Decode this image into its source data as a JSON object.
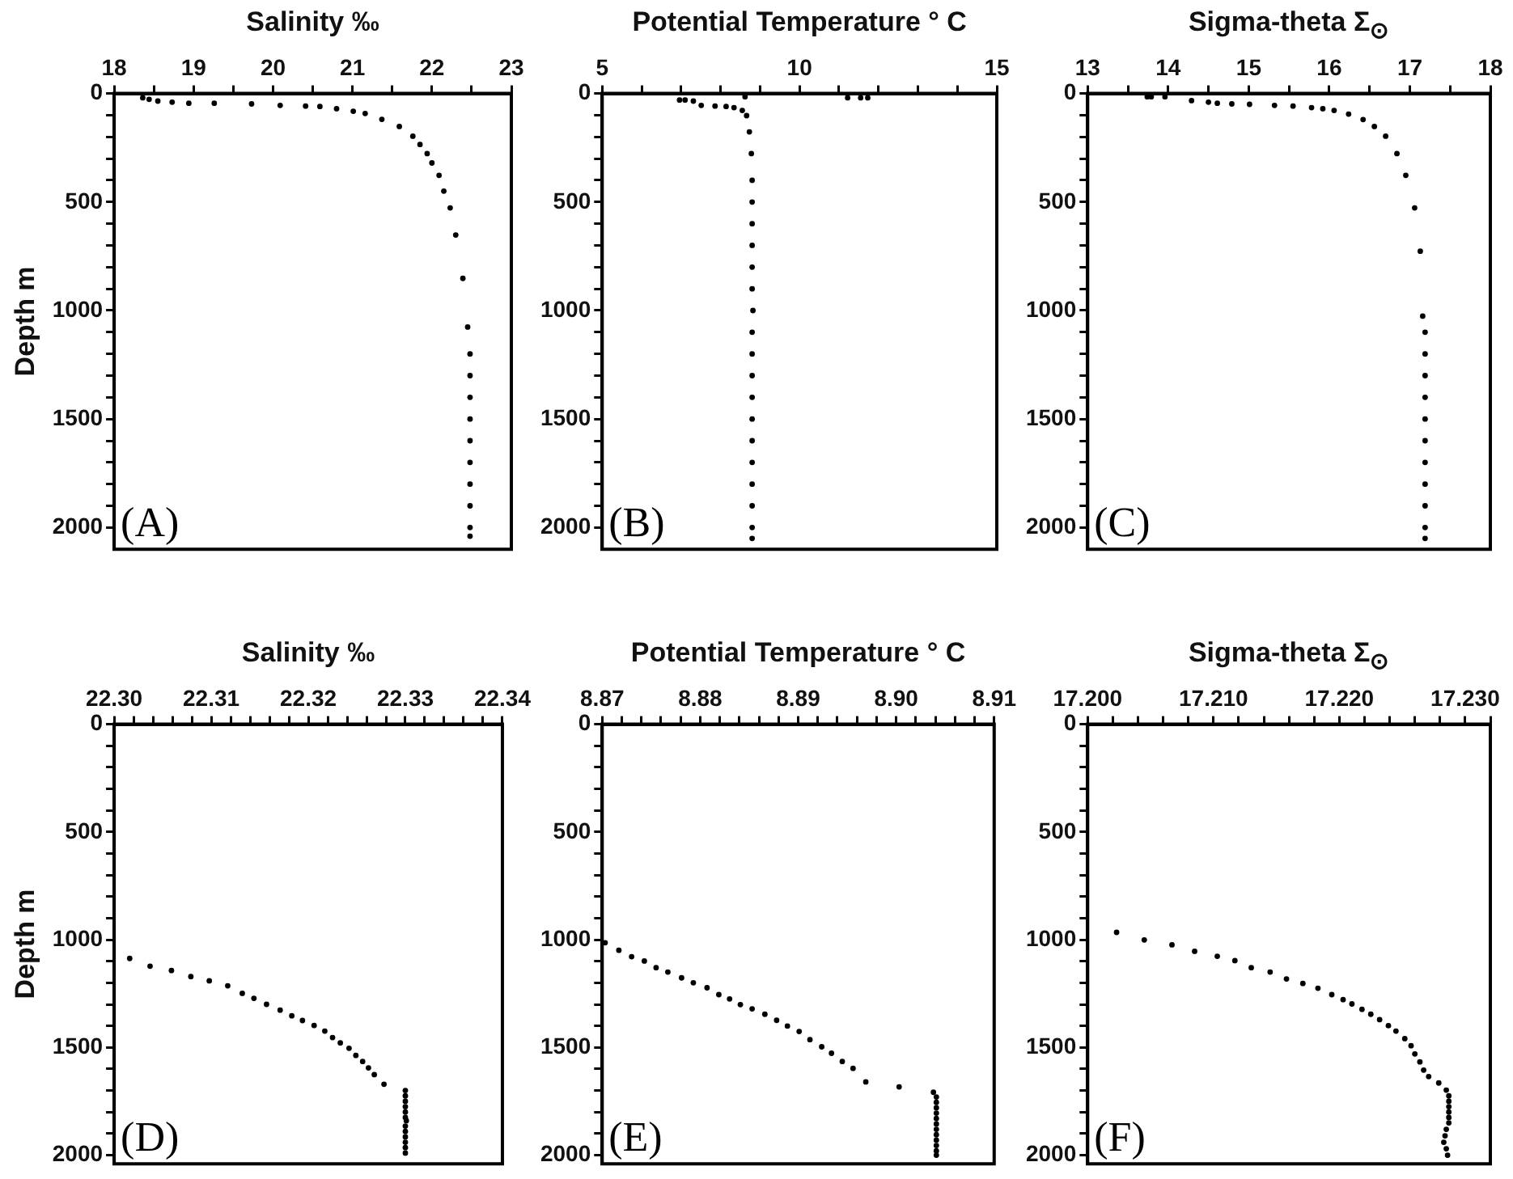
{
  "chart_data": [
    {
      "type": "scatter",
      "xlabel": "Salinity ‰",
      "ylabel": "Depth m",
      "annotations": [
        "(A)"
      ],
      "legend": false,
      "grid": false,
      "marker": "circle",
      "series": [
        {
          "color": "#000000",
          "x": [
            18.36,
            18.44,
            18.55,
            18.73,
            18.94,
            19.26,
            19.73,
            20.09,
            20.41,
            20.59,
            20.8,
            21.01,
            21.16,
            21.37,
            21.59,
            21.76,
            21.85,
            21.94,
            22.0,
            22.09,
            22.15,
            22.23,
            22.3,
            22.39,
            22.45,
            22.48,
            22.48,
            22.48,
            22.48,
            22.48,
            22.48,
            22.48,
            22.48,
            22.48,
            22.48
          ],
          "values": [
            20,
            27,
            35,
            40,
            45,
            45,
            48,
            55,
            58,
            60,
            70,
            82,
            92,
            119,
            152,
            197,
            235,
            277,
            320,
            377,
            450,
            527,
            652,
            852,
            1076,
            1200,
            1300,
            1400,
            1500,
            1600,
            1700,
            1800,
            1900,
            2000,
            2040
          ]
        }
      ],
      "xlim": [
        18,
        23
      ],
      "xticks": [
        18,
        {
          "value": 18.5,
          "label": null
        },
        19,
        {
          "value": 19.5,
          "label": null
        },
        20,
        {
          "value": 20.5,
          "label": null
        },
        21,
        {
          "value": 21.5,
          "label": null
        },
        22,
        {
          "value": 22.5,
          "label": null
        },
        23
      ],
      "ylim": [
        2100,
        0
      ],
      "yticks": [
        0,
        {
          "value": 100,
          "label": null
        },
        {
          "value": 200,
          "label": null
        },
        {
          "value": 300,
          "label": null
        },
        {
          "value": 400,
          "label": null
        },
        500,
        {
          "value": 600,
          "label": null
        },
        {
          "value": 700,
          "label": null
        },
        {
          "value": 800,
          "label": null
        },
        {
          "value": 900,
          "label": null
        },
        1000,
        {
          "value": 1100,
          "label": null
        },
        {
          "value": 1200,
          "label": null
        },
        {
          "value": 1300,
          "label": null
        },
        {
          "value": 1400,
          "label": null
        },
        1500,
        {
          "value": 1600,
          "label": null
        },
        {
          "value": 1700,
          "label": null
        },
        {
          "value": 1800,
          "label": null
        },
        {
          "value": 1900,
          "label": null
        },
        2000
      ]
    },
    {
      "type": "scatter",
      "xlabel": "Potential Temperature ° C",
      "annotations": [
        "(B)"
      ],
      "legend": false,
      "grid": false,
      "marker": "circle",
      "series": [
        {
          "color": "#000000",
          "x": [
            8.62,
            11.22,
            11.55,
            11.73,
            6.96,
            7.1,
            7.31,
            7.51,
            7.86,
            8.14,
            8.34,
            8.55,
            8.66,
            8.73,
            8.78,
            8.8,
            8.8,
            8.8,
            8.8,
            8.8,
            8.8,
            8.82,
            8.8,
            8.8,
            8.8,
            8.8,
            8.8,
            8.8,
            8.8,
            8.8,
            8.8,
            8.8,
            8.8
          ],
          "values": [
            15,
            20,
            20,
            20,
            30,
            30,
            35,
            55,
            58,
            60,
            65,
            78,
            102,
            177,
            277,
            400,
            500,
            600,
            700,
            800,
            900,
            1000,
            1100,
            1200,
            1300,
            1400,
            1500,
            1600,
            1700,
            1800,
            1900,
            2000,
            2050
          ]
        }
      ],
      "xlim": [
        5,
        15
      ],
      "xticks": [
        5,
        {
          "value": 6,
          "label": null
        },
        {
          "value": 7,
          "label": null
        },
        {
          "value": 8,
          "label": null
        },
        {
          "value": 9,
          "label": null
        },
        10,
        {
          "value": 11,
          "label": null
        },
        {
          "value": 12,
          "label": null
        },
        {
          "value": 13,
          "label": null
        },
        {
          "value": 14,
          "label": null
        },
        15
      ],
      "ylim": [
        2100,
        0
      ],
      "yticks": [
        0,
        {
          "value": 100,
          "label": null
        },
        {
          "value": 200,
          "label": null
        },
        {
          "value": 300,
          "label": null
        },
        {
          "value": 400,
          "label": null
        },
        500,
        {
          "value": 600,
          "label": null
        },
        {
          "value": 700,
          "label": null
        },
        {
          "value": 800,
          "label": null
        },
        {
          "value": 900,
          "label": null
        },
        1000,
        {
          "value": 1100,
          "label": null
        },
        {
          "value": 1200,
          "label": null
        },
        {
          "value": 1300,
          "label": null
        },
        {
          "value": 1400,
          "label": null
        },
        1500,
        {
          "value": 1600,
          "label": null
        },
        {
          "value": 1700,
          "label": null
        },
        {
          "value": 1800,
          "label": null
        },
        {
          "value": 1900,
          "label": null
        },
        2000
      ]
    },
    {
      "type": "scatter",
      "xlabel": "Sigma-theta Σ$_{⊙}$",
      "annotations": [
        "(C)"
      ],
      "legend": false,
      "grid": false,
      "marker": "circle",
      "series": [
        {
          "color": "#000000",
          "x": [
            13.74,
            13.79,
            13.96,
            14.29,
            14.5,
            14.61,
            14.79,
            15.01,
            15.32,
            15.55,
            15.78,
            15.92,
            16.06,
            16.24,
            16.42,
            16.56,
            16.7,
            16.84,
            16.95,
            17.06,
            17.13,
            17.16,
            17.19,
            17.19,
            17.19,
            17.19,
            17.19,
            17.19,
            17.19,
            17.19,
            17.19,
            17.19,
            17.19
          ],
          "values": [
            15,
            15,
            15,
            33,
            40,
            45,
            48,
            50,
            55,
            58,
            65,
            70,
            78,
            95,
            120,
            152,
            197,
            277,
            377,
            527,
            727,
            1026,
            1100,
            1200,
            1300,
            1400,
            1500,
            1600,
            1700,
            1800,
            1900,
            2000,
            2050
          ]
        }
      ],
      "xlim": [
        13,
        18
      ],
      "xticks": [
        13,
        {
          "value": 13.5,
          "label": null
        },
        14,
        {
          "value": 14.5,
          "label": null
        },
        15,
        {
          "value": 15.5,
          "label": null
        },
        16,
        {
          "value": 16.5,
          "label": null
        },
        17,
        {
          "value": 17.5,
          "label": null
        },
        18
      ],
      "ylim": [
        2100,
        0
      ],
      "yticks": [
        0,
        {
          "value": 100,
          "label": null
        },
        {
          "value": 200,
          "label": null
        },
        {
          "value": 300,
          "label": null
        },
        {
          "value": 400,
          "label": null
        },
        500,
        {
          "value": 600,
          "label": null
        },
        {
          "value": 700,
          "label": null
        },
        {
          "value": 800,
          "label": null
        },
        {
          "value": 900,
          "label": null
        },
        1000,
        {
          "value": 1100,
          "label": null
        },
        {
          "value": 1200,
          "label": null
        },
        {
          "value": 1300,
          "label": null
        },
        {
          "value": 1400,
          "label": null
        },
        1500,
        {
          "value": 1600,
          "label": null
        },
        {
          "value": 1700,
          "label": null
        },
        {
          "value": 1800,
          "label": null
        },
        {
          "value": 1900,
          "label": null
        },
        2000
      ]
    },
    {
      "type": "scatter",
      "xlabel": "Salinity ‰",
      "ylabel": "Depth m",
      "annotations": [
        "(D)"
      ],
      "legend": false,
      "grid": false,
      "marker": "circle",
      "series": [
        {
          "color": "#000000",
          "x": [
            22.3016,
            22.3037,
            22.3059,
            22.3079,
            22.3098,
            22.3117,
            22.3132,
            22.3144,
            22.3157,
            22.3171,
            22.3183,
            22.3194,
            22.3206,
            22.3217,
            22.3225,
            22.3233,
            22.3242,
            22.3249,
            22.3256,
            22.3262,
            22.3268,
            22.3278,
            22.33,
            22.33,
            22.33,
            22.33,
            22.33,
            22.33,
            22.3301,
            22.33,
            22.33,
            22.33,
            22.33,
            22.33,
            22.33
          ],
          "values": [
            1087,
            1123,
            1143,
            1171,
            1191,
            1214,
            1249,
            1272,
            1300,
            1327,
            1353,
            1375,
            1398,
            1424,
            1454,
            1479,
            1504,
            1537,
            1565,
            1595,
            1626,
            1671,
            1700,
            1725,
            1750,
            1775,
            1800,
            1825,
            1840,
            1865,
            1890,
            1915,
            1940,
            1965,
            1990
          ]
        }
      ],
      "xlim": [
        22.3,
        22.34
      ],
      "xticks": [
        {
          "value": 22.3,
          "label": "22.30"
        },
        {
          "value": 22.302,
          "label": null
        },
        {
          "value": 22.304,
          "label": null
        },
        {
          "value": 22.306,
          "label": null
        },
        {
          "value": 22.308,
          "label": null
        },
        22.31,
        {
          "value": 22.312,
          "label": null
        },
        {
          "value": 22.314,
          "label": null
        },
        {
          "value": 22.316,
          "label": null
        },
        {
          "value": 22.318,
          "label": null
        },
        22.32,
        {
          "value": 22.322,
          "label": null
        },
        {
          "value": 22.324,
          "label": null
        },
        {
          "value": 22.326,
          "label": null
        },
        {
          "value": 22.328,
          "label": null
        },
        22.33,
        {
          "value": 22.332,
          "label": null
        },
        {
          "value": 22.334,
          "label": null
        },
        {
          "value": 22.336,
          "label": null
        },
        {
          "value": 22.338,
          "label": null
        },
        22.34
      ],
      "ylim": [
        2040,
        0
      ],
      "yticks": [
        0,
        {
          "value": 100,
          "label": null
        },
        {
          "value": 200,
          "label": null
        },
        {
          "value": 300,
          "label": null
        },
        {
          "value": 400,
          "label": null
        },
        500,
        {
          "value": 600,
          "label": null
        },
        {
          "value": 700,
          "label": null
        },
        {
          "value": 800,
          "label": null
        },
        {
          "value": 900,
          "label": null
        },
        1000,
        {
          "value": 1100,
          "label": null
        },
        {
          "value": 1200,
          "label": null
        },
        {
          "value": 1300,
          "label": null
        },
        {
          "value": 1400,
          "label": null
        },
        1500,
        {
          "value": 1600,
          "label": null
        },
        {
          "value": 1700,
          "label": null
        },
        {
          "value": 1800,
          "label": null
        },
        {
          "value": 1900,
          "label": null
        },
        2000
      ]
    },
    {
      "type": "scatter",
      "xlabel": "Potential Temperature ° C",
      "annotations": [
        "(E)"
      ],
      "legend": false,
      "grid": false,
      "marker": "circle",
      "series": [
        {
          "color": "#000000",
          "x": [
            8.8703,
            8.8717,
            8.873,
            8.8743,
            8.8755,
            8.8767,
            8.8781,
            8.8793,
            8.8807,
            8.8819,
            8.883,
            8.8841,
            8.8853,
            8.8866,
            8.8878,
            8.8889,
            8.8901,
            8.8912,
            8.8924,
            8.8934,
            8.8945,
            8.8956,
            8.8969,
            8.9003,
            8.9038,
            8.9041,
            8.9041,
            8.9041,
            8.9041,
            8.9041,
            8.9041,
            8.9041,
            8.9041,
            8.9041,
            8.9041,
            8.9041,
            8.9041
          ],
          "values": [
            1014,
            1049,
            1079,
            1099,
            1130,
            1150,
            1177,
            1200,
            1223,
            1255,
            1275,
            1301,
            1321,
            1346,
            1374,
            1401,
            1426,
            1464,
            1497,
            1527,
            1565,
            1597,
            1660,
            1683,
            1708,
            1730,
            1755,
            1780,
            1805,
            1830,
            1855,
            1880,
            1905,
            1930,
            1955,
            1980,
            2000
          ]
        }
      ],
      "xlim": [
        8.87,
        8.91
      ],
      "xticks": [
        8.87,
        {
          "value": 8.872,
          "label": null
        },
        {
          "value": 8.874,
          "label": null
        },
        {
          "value": 8.876,
          "label": null
        },
        {
          "value": 8.878,
          "label": null
        },
        8.88,
        {
          "value": 8.882,
          "label": null
        },
        {
          "value": 8.884,
          "label": null
        },
        {
          "value": 8.886,
          "label": null
        },
        {
          "value": 8.888,
          "label": null
        },
        8.89,
        {
          "value": 8.892,
          "label": null
        },
        {
          "value": 8.894,
          "label": null
        },
        {
          "value": 8.896,
          "label": null
        },
        {
          "value": 8.898,
          "label": null
        },
        {
          "value": 8.9,
          "label": "8.90"
        },
        {
          "value": 8.902,
          "label": null
        },
        {
          "value": 8.904,
          "label": null
        },
        {
          "value": 8.906,
          "label": null
        },
        {
          "value": 8.908,
          "label": null
        },
        8.91
      ],
      "ylim": [
        2040,
        0
      ],
      "yticks": [
        0,
        {
          "value": 100,
          "label": null
        },
        {
          "value": 200,
          "label": null
        },
        {
          "value": 300,
          "label": null
        },
        {
          "value": 400,
          "label": null
        },
        500,
        {
          "value": 600,
          "label": null
        },
        {
          "value": 700,
          "label": null
        },
        {
          "value": 800,
          "label": null
        },
        {
          "value": 900,
          "label": null
        },
        1000,
        {
          "value": 1100,
          "label": null
        },
        {
          "value": 1200,
          "label": null
        },
        {
          "value": 1300,
          "label": null
        },
        {
          "value": 1400,
          "label": null
        },
        1500,
        {
          "value": 1600,
          "label": null
        },
        {
          "value": 1700,
          "label": null
        },
        {
          "value": 1800,
          "label": null
        },
        {
          "value": 1900,
          "label": null
        },
        2000
      ]
    },
    {
      "type": "scatter",
      "xlabel": "Sigma-theta Σ$_{⊙}$",
      "annotations": [
        "(F)"
      ],
      "legend": false,
      "grid": false,
      "marker": "circle",
      "series": [
        {
          "color": "#000000",
          "x": [
            17.2023,
            17.2045,
            17.2067,
            17.2085,
            17.2103,
            17.2117,
            17.213,
            17.2145,
            17.2158,
            17.2171,
            17.2183,
            17.2194,
            17.2203,
            17.221,
            17.2218,
            17.2225,
            17.2232,
            17.2239,
            17.2245,
            17.2252,
            17.2257,
            17.226,
            17.2264,
            17.2267,
            17.2271,
            17.2279,
            17.2285,
            17.2287,
            17.2287,
            17.2287,
            17.2287,
            17.2287,
            17.2287,
            17.2285,
            17.2284,
            17.2283,
            17.2285,
            17.2286
          ],
          "values": [
            966,
            1001,
            1024,
            1054,
            1077,
            1097,
            1130,
            1150,
            1182,
            1203,
            1225,
            1255,
            1278,
            1298,
            1323,
            1346,
            1371,
            1399,
            1424,
            1459,
            1492,
            1530,
            1567,
            1605,
            1635,
            1665,
            1698,
            1725,
            1750,
            1775,
            1800,
            1825,
            1850,
            1880,
            1910,
            1940,
            1970,
            2000
          ]
        }
      ],
      "xlim": [
        17.2,
        17.232
      ],
      "xticks": [
        {
          "value": 17.2,
          "label": "17.200"
        },
        {
          "value": 17.202,
          "label": null
        },
        {
          "value": 17.204,
          "label": null
        },
        {
          "value": 17.206,
          "label": null
        },
        {
          "value": 17.208,
          "label": null
        },
        {
          "value": 17.21,
          "label": "17.210"
        },
        {
          "value": 17.212,
          "label": null
        },
        {
          "value": 17.214,
          "label": null
        },
        {
          "value": 17.216,
          "label": null
        },
        {
          "value": 17.218,
          "label": null
        },
        {
          "value": 17.22,
          "label": "17.220"
        },
        {
          "value": 17.222,
          "label": null
        },
        {
          "value": 17.224,
          "label": null
        },
        {
          "value": 17.226,
          "label": null
        },
        {
          "value": 17.228,
          "label": null
        },
        {
          "value": 17.23,
          "label": "17.230"
        },
        {
          "value": 17.232,
          "label": null
        }
      ],
      "ylim": [
        2040,
        0
      ],
      "yticks": [
        0,
        {
          "value": 100,
          "label": null
        },
        {
          "value": 200,
          "label": null
        },
        {
          "value": 300,
          "label": null
        },
        {
          "value": 400,
          "label": null
        },
        500,
        {
          "value": 600,
          "label": null
        },
        {
          "value": 700,
          "label": null
        },
        {
          "value": 800,
          "label": null
        },
        {
          "value": 900,
          "label": null
        },
        1000,
        {
          "value": 1100,
          "label": null
        },
        {
          "value": 1200,
          "label": null
        },
        {
          "value": 1300,
          "label": null
        },
        {
          "value": 1400,
          "label": null
        },
        1500,
        {
          "value": 1600,
          "label": null
        },
        {
          "value": 1700,
          "label": null
        },
        {
          "value": 1800,
          "label": null
        },
        {
          "value": 1900,
          "label": null
        },
        2000
      ]
    }
  ]
}
